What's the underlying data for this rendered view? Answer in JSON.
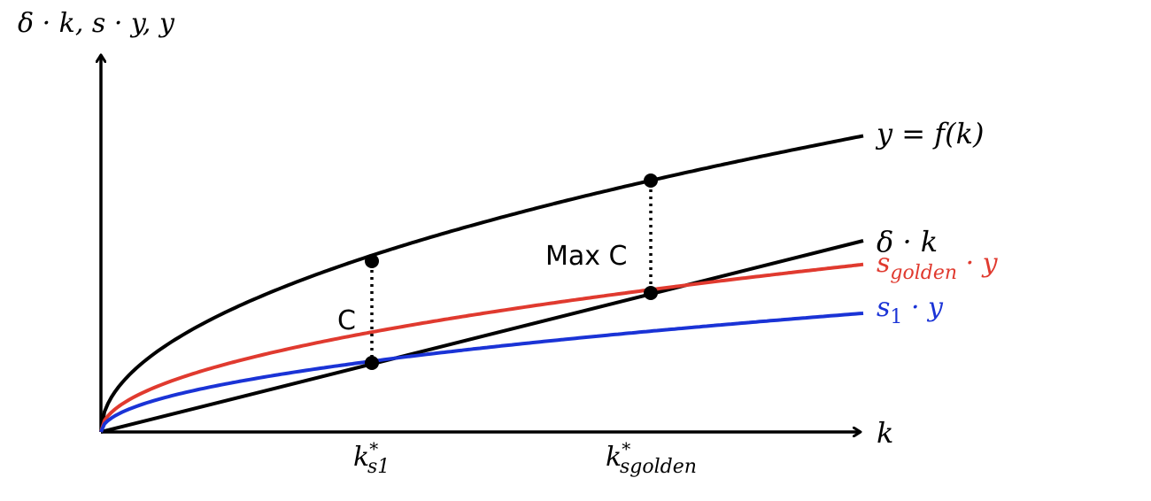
{
  "axes": {
    "y_label": "δ · k, s · y, y",
    "x_label": "k"
  },
  "curves": {
    "output": {
      "label": "y = f(k)",
      "color": "#000000"
    },
    "depreciation": {
      "label_base": "δ · k",
      "color": "#000000"
    },
    "golden_saving": {
      "label_base": "s",
      "label_sub": "golden",
      "label_tail": " · y",
      "color": "#e03a2f"
    },
    "s1_saving": {
      "label_base": "s",
      "label_sub": "1",
      "label_tail": " · y",
      "color": "#1a33d6"
    }
  },
  "annotations": {
    "consumption_s1": "C",
    "consumption_golden": "Max C"
  },
  "ticks": {
    "k_s1": {
      "base": "k",
      "sup": "*",
      "sub": "s1"
    },
    "k_golden": {
      "base": "k",
      "sup": "*",
      "sub": "sgolden"
    }
  }
}
